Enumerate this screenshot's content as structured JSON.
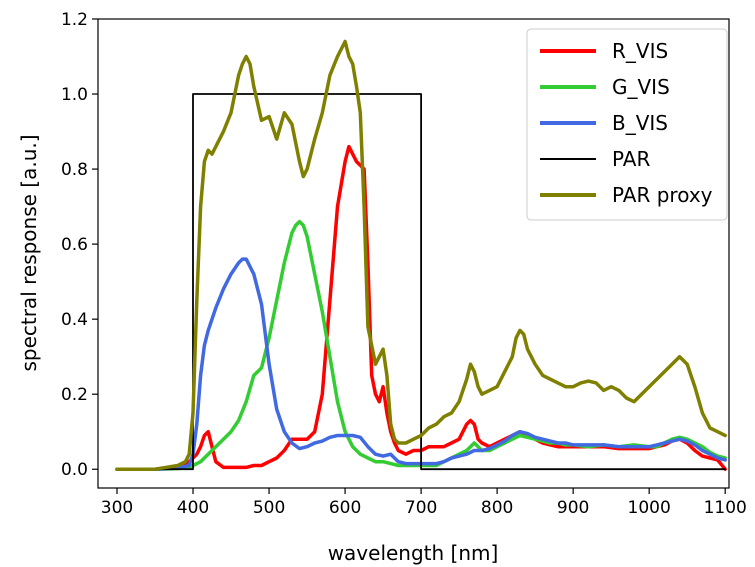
{
  "chart_data": {
    "type": "line",
    "title": "",
    "xlabel": "wavelength [nm]",
    "ylabel": "spectral response [a.u.]",
    "xlim": [
      275,
      1105
    ],
    "ylim": [
      -0.05,
      1.2
    ],
    "xticks": [
      300,
      400,
      500,
      600,
      700,
      800,
      900,
      1000,
      1100
    ],
    "yticks": [
      0.0,
      0.2,
      0.4,
      0.6,
      0.8,
      1.0,
      1.2
    ],
    "ytick_labels": [
      "0.0",
      "0.2",
      "0.4",
      "0.6",
      "0.8",
      "1.0",
      "1.2"
    ],
    "grid": false,
    "legend_position": "top-right",
    "series": [
      {
        "name": "R_VIS",
        "color": "#ff0000",
        "x": [
          300,
          350,
          380,
          395,
          400,
          405,
          410,
          415,
          420,
          425,
          430,
          440,
          450,
          460,
          470,
          480,
          490,
          500,
          510,
          520,
          530,
          540,
          550,
          560,
          570,
          580,
          590,
          600,
          605,
          610,
          615,
          620,
          625,
          630,
          635,
          640,
          645,
          650,
          655,
          660,
          665,
          670,
          680,
          690,
          700,
          710,
          720,
          730,
          740,
          750,
          760,
          765,
          770,
          775,
          780,
          790,
          800,
          810,
          820,
          830,
          840,
          850,
          860,
          870,
          880,
          890,
          900,
          920,
          940,
          960,
          980,
          1000,
          1010,
          1020,
          1030,
          1040,
          1050,
          1060,
          1070,
          1080,
          1090,
          1100
        ],
        "y": [
          0.0,
          0.0,
          0.005,
          0.02,
          0.03,
          0.04,
          0.06,
          0.09,
          0.1,
          0.06,
          0.02,
          0.005,
          0.005,
          0.005,
          0.005,
          0.01,
          0.01,
          0.02,
          0.03,
          0.05,
          0.08,
          0.08,
          0.08,
          0.1,
          0.2,
          0.45,
          0.7,
          0.82,
          0.86,
          0.84,
          0.82,
          0.81,
          0.8,
          0.55,
          0.25,
          0.2,
          0.18,
          0.22,
          0.15,
          0.1,
          0.07,
          0.05,
          0.04,
          0.05,
          0.05,
          0.06,
          0.06,
          0.06,
          0.07,
          0.08,
          0.12,
          0.13,
          0.12,
          0.08,
          0.07,
          0.06,
          0.07,
          0.08,
          0.09,
          0.1,
          0.09,
          0.08,
          0.07,
          0.065,
          0.06,
          0.06,
          0.06,
          0.06,
          0.06,
          0.055,
          0.055,
          0.055,
          0.06,
          0.065,
          0.075,
          0.08,
          0.07,
          0.05,
          0.035,
          0.03,
          0.025,
          0.0
        ]
      },
      {
        "name": "G_VIS",
        "color": "#33cc33",
        "x": [
          300,
          350,
          380,
          395,
          400,
          410,
          420,
          430,
          440,
          450,
          460,
          470,
          480,
          485,
          490,
          500,
          510,
          520,
          530,
          535,
          540,
          545,
          550,
          560,
          570,
          580,
          590,
          600,
          610,
          620,
          630,
          640,
          650,
          660,
          670,
          680,
          690,
          700,
          710,
          720,
          730,
          740,
          750,
          760,
          770,
          780,
          790,
          800,
          810,
          820,
          830,
          840,
          850,
          860,
          870,
          880,
          890,
          900,
          920,
          940,
          960,
          980,
          1000,
          1010,
          1020,
          1030,
          1040,
          1050,
          1060,
          1070,
          1080,
          1090,
          1100
        ],
        "y": [
          0.0,
          0.0,
          0.002,
          0.005,
          0.01,
          0.02,
          0.04,
          0.06,
          0.08,
          0.1,
          0.13,
          0.18,
          0.25,
          0.26,
          0.27,
          0.35,
          0.45,
          0.55,
          0.63,
          0.65,
          0.66,
          0.65,
          0.62,
          0.52,
          0.42,
          0.3,
          0.18,
          0.1,
          0.06,
          0.04,
          0.03,
          0.02,
          0.02,
          0.015,
          0.01,
          0.01,
          0.01,
          0.01,
          0.01,
          0.01,
          0.02,
          0.03,
          0.04,
          0.05,
          0.07,
          0.05,
          0.05,
          0.06,
          0.07,
          0.08,
          0.09,
          0.085,
          0.08,
          0.075,
          0.07,
          0.07,
          0.065,
          0.065,
          0.06,
          0.065,
          0.06,
          0.065,
          0.06,
          0.06,
          0.07,
          0.08,
          0.085,
          0.08,
          0.07,
          0.06,
          0.045,
          0.035,
          0.03
        ]
      },
      {
        "name": "B_VIS",
        "color": "#4169e1",
        "x": [
          300,
          350,
          380,
          395,
          400,
          405,
          410,
          415,
          420,
          430,
          440,
          450,
          460,
          465,
          470,
          480,
          490,
          500,
          510,
          520,
          530,
          540,
          550,
          560,
          570,
          580,
          590,
          600,
          610,
          620,
          630,
          640,
          650,
          660,
          670,
          680,
          690,
          700,
          710,
          720,
          730,
          740,
          750,
          760,
          770,
          780,
          790,
          800,
          810,
          820,
          830,
          840,
          850,
          860,
          870,
          880,
          890,
          900,
          920,
          940,
          960,
          980,
          1000,
          1010,
          1020,
          1030,
          1040,
          1050,
          1060,
          1070,
          1080,
          1090,
          1100
        ],
        "y": [
          0.0,
          0.0,
          0.003,
          0.01,
          0.04,
          0.12,
          0.25,
          0.33,
          0.37,
          0.43,
          0.48,
          0.52,
          0.55,
          0.56,
          0.56,
          0.52,
          0.44,
          0.28,
          0.16,
          0.1,
          0.07,
          0.055,
          0.06,
          0.07,
          0.075,
          0.085,
          0.09,
          0.09,
          0.09,
          0.085,
          0.06,
          0.04,
          0.035,
          0.04,
          0.02,
          0.015,
          0.015,
          0.015,
          0.015,
          0.015,
          0.02,
          0.03,
          0.035,
          0.04,
          0.05,
          0.05,
          0.055,
          0.065,
          0.075,
          0.09,
          0.1,
          0.095,
          0.085,
          0.08,
          0.075,
          0.07,
          0.07,
          0.065,
          0.065,
          0.065,
          0.06,
          0.06,
          0.06,
          0.065,
          0.07,
          0.075,
          0.08,
          0.075,
          0.065,
          0.05,
          0.04,
          0.03,
          0.025
        ]
      },
      {
        "name": "PAR",
        "color": "#000000",
        "x": [
          300,
          400,
          400,
          700,
          700,
          1100
        ],
        "y": [
          0.0,
          0.0,
          1.0,
          1.0,
          0.0,
          0.0
        ]
      },
      {
        "name": "PAR proxy",
        "color": "#808000",
        "x": [
          300,
          350,
          380,
          390,
          395,
          400,
          405,
          410,
          415,
          420,
          425,
          430,
          440,
          450,
          460,
          465,
          470,
          475,
          480,
          490,
          500,
          510,
          520,
          530,
          540,
          545,
          550,
          560,
          570,
          580,
          590,
          600,
          605,
          610,
          615,
          620,
          625,
          630,
          640,
          650,
          655,
          660,
          665,
          670,
          680,
          690,
          700,
          710,
          720,
          730,
          740,
          750,
          760,
          765,
          770,
          775,
          780,
          790,
          800,
          810,
          820,
          825,
          830,
          835,
          840,
          850,
          860,
          870,
          880,
          890,
          900,
          910,
          920,
          930,
          940,
          950,
          960,
          970,
          980,
          990,
          1000,
          1010,
          1020,
          1030,
          1040,
          1050,
          1060,
          1070,
          1080,
          1090,
          1100
        ],
        "y": [
          0.0,
          0.0,
          0.01,
          0.02,
          0.04,
          0.15,
          0.45,
          0.7,
          0.82,
          0.85,
          0.84,
          0.86,
          0.9,
          0.95,
          1.05,
          1.08,
          1.1,
          1.08,
          1.02,
          0.93,
          0.94,
          0.88,
          0.95,
          0.92,
          0.82,
          0.78,
          0.8,
          0.88,
          0.95,
          1.05,
          1.1,
          1.14,
          1.1,
          1.08,
          1.02,
          0.95,
          0.7,
          0.38,
          0.28,
          0.32,
          0.25,
          0.12,
          0.08,
          0.07,
          0.07,
          0.08,
          0.09,
          0.11,
          0.12,
          0.14,
          0.15,
          0.18,
          0.24,
          0.28,
          0.26,
          0.22,
          0.2,
          0.21,
          0.22,
          0.26,
          0.3,
          0.35,
          0.37,
          0.36,
          0.32,
          0.28,
          0.25,
          0.24,
          0.23,
          0.22,
          0.22,
          0.23,
          0.235,
          0.23,
          0.21,
          0.22,
          0.21,
          0.19,
          0.18,
          0.2,
          0.22,
          0.24,
          0.26,
          0.28,
          0.3,
          0.28,
          0.22,
          0.15,
          0.11,
          0.1,
          0.09
        ]
      }
    ]
  }
}
